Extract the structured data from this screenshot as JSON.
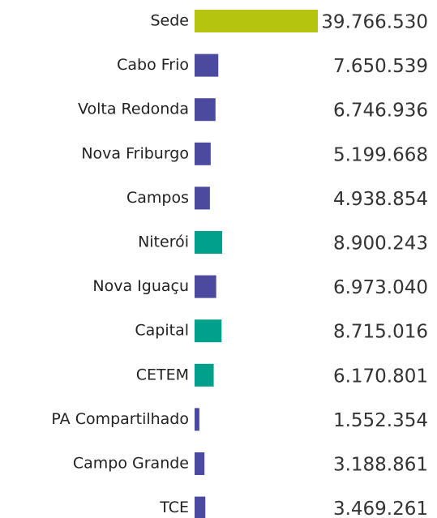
{
  "chart_data": {
    "type": "bar",
    "orientation": "horizontal",
    "categories": [
      "Sede",
      "Cabo Frio",
      "Volta Redonda",
      "Nova Friburgo",
      "Campos",
      "Niterói",
      "Nova Iguaçu",
      "Capital",
      "CETEM",
      "PA Compartilhado",
      "Campo Grande",
      "TCE"
    ],
    "values": [
      39766530,
      7650539,
      6746936,
      5199668,
      4938854,
      8900243,
      6973040,
      8715016,
      6170801,
      1552354,
      3188861,
      3469261
    ],
    "value_labels": [
      "39.766.530",
      "7.650.539",
      "6.746.936",
      "5.199.668",
      "4.938.854",
      "8.900.243",
      "6.973.040",
      "8.715.016",
      "6.170.801",
      "1.552.354",
      "3.188.861",
      "3.469.261"
    ],
    "colors": [
      "#b5c40f",
      "#4b4a9e",
      "#4b4a9e",
      "#4b4a9e",
      "#4b4a9e",
      "#00a08c",
      "#4b4a9e",
      "#00a08c",
      "#00a08c",
      "#4b4a9e",
      "#4b4a9e",
      "#4b4a9e"
    ]
  }
}
